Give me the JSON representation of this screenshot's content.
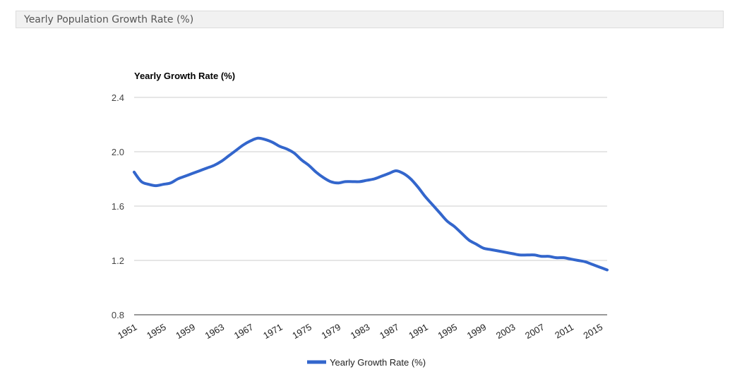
{
  "panel": {
    "title": "Yearly Population Growth Rate (%)"
  },
  "chart_data": {
    "type": "line",
    "title": "",
    "ylabel": "Yearly Growth Rate (%)",
    "xlabel": "",
    "ylim": [
      0.8,
      2.4
    ],
    "y_ticks": [
      "0.8",
      "1.2",
      "1.6",
      "2.0",
      "2.4"
    ],
    "x_tick_labels": [
      "1951",
      "1955",
      "1959",
      "1963",
      "1967",
      "1971",
      "1975",
      "1979",
      "1983",
      "1987",
      "1991",
      "1995",
      "1999",
      "2003",
      "2007",
      "2011",
      "2015"
    ],
    "grid": true,
    "legend_position": "bottom",
    "series": [
      {
        "name": "Yearly Growth Rate (%)",
        "color": "#3366cc",
        "x": [
          1951,
          1952,
          1953,
          1954,
          1955,
          1956,
          1957,
          1958,
          1959,
          1960,
          1961,
          1962,
          1963,
          1964,
          1965,
          1966,
          1967,
          1968,
          1969,
          1970,
          1971,
          1972,
          1973,
          1974,
          1975,
          1976,
          1977,
          1978,
          1979,
          1980,
          1981,
          1982,
          1983,
          1984,
          1985,
          1986,
          1987,
          1988,
          1989,
          1990,
          1991,
          1992,
          1993,
          1994,
          1995,
          1996,
          1997,
          1998,
          1999,
          2000,
          2001,
          2002,
          2003,
          2004,
          2005,
          2006,
          2007,
          2008,
          2009,
          2010,
          2011,
          2012,
          2013,
          2014,
          2015,
          2016
        ],
        "values": [
          1.85,
          1.78,
          1.76,
          1.75,
          1.76,
          1.77,
          1.8,
          1.82,
          1.84,
          1.86,
          1.88,
          1.9,
          1.93,
          1.97,
          2.01,
          2.05,
          2.08,
          2.1,
          2.09,
          2.07,
          2.04,
          2.02,
          1.99,
          1.94,
          1.9,
          1.85,
          1.81,
          1.78,
          1.77,
          1.78,
          1.78,
          1.78,
          1.79,
          1.8,
          1.82,
          1.84,
          1.86,
          1.84,
          1.8,
          1.74,
          1.67,
          1.61,
          1.55,
          1.49,
          1.45,
          1.4,
          1.35,
          1.32,
          1.29,
          1.28,
          1.27,
          1.26,
          1.25,
          1.24,
          1.24,
          1.24,
          1.23,
          1.23,
          1.22,
          1.22,
          1.21,
          1.2,
          1.19,
          1.17,
          1.15,
          1.13
        ]
      }
    ]
  }
}
